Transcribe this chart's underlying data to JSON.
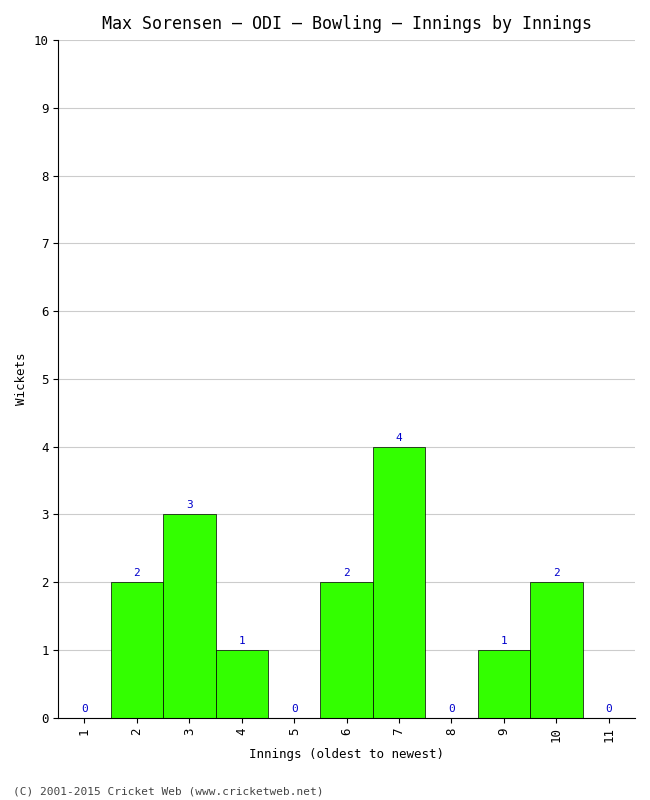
{
  "title": "Max Sorensen – ODI – Bowling – Innings by Innings",
  "xlabel": "Innings (oldest to newest)",
  "ylabel": "Wickets",
  "categories": [
    1,
    2,
    3,
    4,
    5,
    6,
    7,
    8,
    9,
    10,
    11
  ],
  "values": [
    0,
    2,
    3,
    1,
    0,
    2,
    4,
    0,
    1,
    2,
    0
  ],
  "bar_color": "#33ff00",
  "bar_edge_color": "#000000",
  "label_color": "#0000cc",
  "ylim": [
    0,
    10
  ],
  "yticks": [
    0,
    1,
    2,
    3,
    4,
    5,
    6,
    7,
    8,
    9,
    10
  ],
  "background_color": "#ffffff",
  "grid_color": "#cccccc",
  "title_fontsize": 12,
  "axis_label_fontsize": 9,
  "tick_fontsize": 9,
  "bar_label_fontsize": 8,
  "footer": "(C) 2001-2015 Cricket Web (www.cricketweb.net)"
}
